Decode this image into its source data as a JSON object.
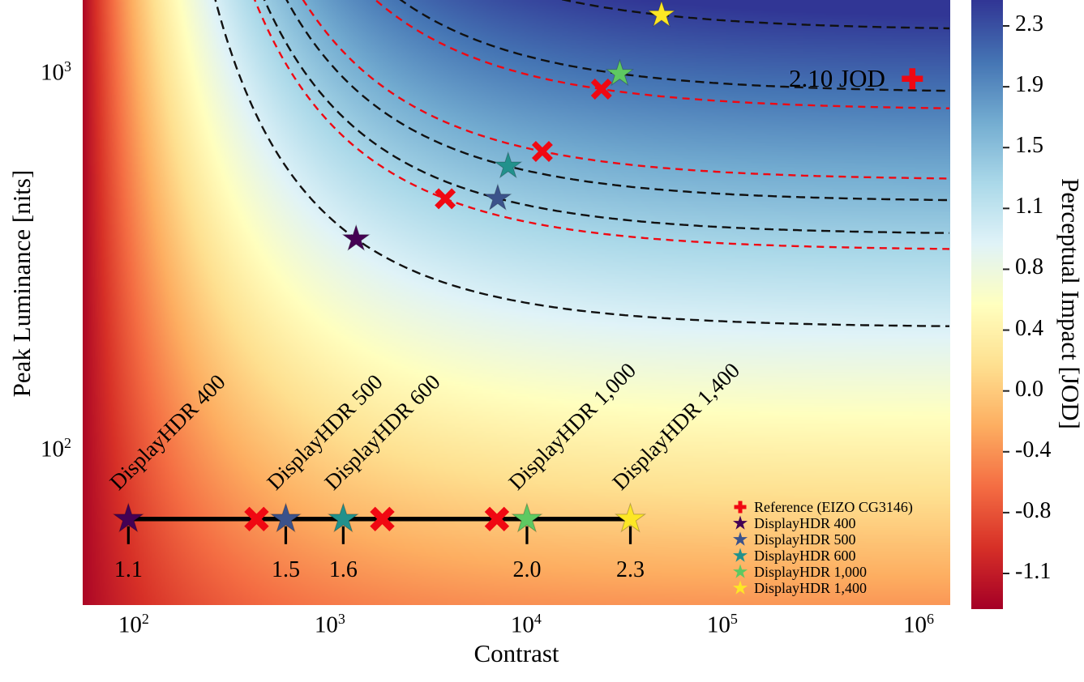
{
  "axis": {
    "x": {
      "label": "Contrast",
      "scale": "log",
      "tick_exponents": [
        2,
        3,
        4,
        5,
        6
      ]
    },
    "y": {
      "label": "Peak Luminance [nits]",
      "scale": "log",
      "tick_exponents": [
        3,
        2
      ]
    }
  },
  "colorbar": {
    "label": "Perceptual Impact [JOD]",
    "tick_labels": [
      "2.3",
      "1.9",
      "1.5",
      "1.1",
      "0.8",
      "0.4",
      "0.0",
      "-0.4",
      "-0.8",
      "-1.1"
    ],
    "value_range": [
      -1.35,
      2.42
    ],
    "colormap": "RdYlBu"
  },
  "annotation": {
    "text": "2.10 JOD",
    "color": "#111111"
  },
  "chart_data": {
    "type": "heatmap",
    "title": "",
    "x_axis_range": [
      55,
      1450000
    ],
    "y_axis_range": [
      39,
      1578
    ],
    "surface": "JOD(contrast, luminance): saturating, floor -1.3 at low contrast, max ~2.4 at high contrast/luminance",
    "field_model": {
      "floor": -1.3,
      "span": 3.8,
      "su_tau": 0.75,
      "sw_min": 0.25
    },
    "displays": [
      {
        "name": "DisplayHDR 400",
        "color": "#440154",
        "point": {
          "contrast": 1360,
          "luminance": 366
        },
        "line_point": {
          "contrast": 94,
          "jod_label": "1.1"
        }
      },
      {
        "name": "DisplayHDR 500",
        "color": "#3b528b",
        "point": {
          "contrast": 7170,
          "luminance": 469
        },
        "line_point": {
          "contrast": 596,
          "jod_label": "1.5"
        }
      },
      {
        "name": "DisplayHDR 600",
        "color": "#21918c",
        "point": {
          "contrast": 8100,
          "luminance": 571
        },
        "line_point": {
          "contrast": 1170,
          "jod_label": "1.6"
        }
      },
      {
        "name": "DisplayHDR 1,000",
        "color": "#5ec962",
        "point": {
          "contrast": 30000,
          "luminance": 1005
        },
        "line_point": {
          "contrast": 10100,
          "jod_label": "2.0"
        }
      },
      {
        "name": "DisplayHDR 1,400",
        "color": "#fde725",
        "point": {
          "contrast": 49000,
          "luminance": 1440
        },
        "line_point": {
          "contrast": 34000,
          "jod_label": "2.3"
        }
      }
    ],
    "reference": {
      "name": "Reference (EIZO CG3146)",
      "color": "#f00812",
      "point": {
        "contrast": 930000,
        "luminance": 975
      },
      "jod_label": "2.10 JOD"
    },
    "reference_match_points": [
      {
        "contrast": 3870,
        "luminance": 468
      },
      {
        "contrast": 12100,
        "luminance": 625
      },
      {
        "contrast": 24200,
        "luminance": 915
      }
    ],
    "reference_match_line_contrasts": [
      423,
      1850,
      7100
    ],
    "jod_line_luminance": 66,
    "contour_style": {
      "display_color": "#111111",
      "reference_color": "#f00812",
      "dash": true
    }
  },
  "legend": {
    "items": [
      {
        "label": "Reference (EIZO CG3146)",
        "marker": "plus",
        "color": "#f00812"
      },
      {
        "label": "DisplayHDR 400",
        "marker": "star",
        "color": "#440154"
      },
      {
        "label": "DisplayHDR 500",
        "marker": "star",
        "color": "#3b528b"
      },
      {
        "label": "DisplayHDR 600",
        "marker": "star",
        "color": "#21918c"
      },
      {
        "label": "DisplayHDR 1,000",
        "marker": "star",
        "color": "#5ec962"
      },
      {
        "label": "DisplayHDR 1,400",
        "marker": "star",
        "color": "#fde725"
      }
    ]
  },
  "colors": {
    "rdylbu": [
      [
        165,
        0,
        38
      ],
      [
        215,
        48,
        39
      ],
      [
        244,
        109,
        67
      ],
      [
        253,
        174,
        97
      ],
      [
        254,
        224,
        144
      ],
      [
        255,
        255,
        191
      ],
      [
        224,
        243,
        248
      ],
      [
        171,
        217,
        233
      ],
      [
        116,
        173,
        209
      ],
      [
        69,
        117,
        180
      ],
      [
        49,
        54,
        149
      ]
    ]
  }
}
